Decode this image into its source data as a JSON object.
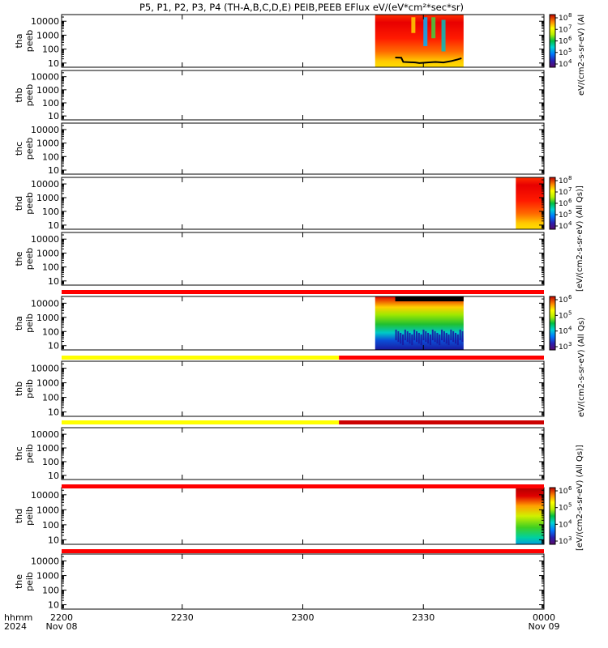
{
  "title": "P5, P1, P2, P3, P4 (TH-A,B,C,D,E) PEIB,PEEB EFlux eV/(eV*cm²*sec*sr)",
  "colorbar_units": {
    "eflux_short": "eV/(cm2-s-sr-eV) (Al",
    "eflux_long": "[eV/(cm2-s-sr-eV) (All Qs)]",
    "eflux_mid": "eV/(cm2-s-sr-eV) (All Qs)"
  },
  "time_axis": {
    "row1_label": "hhmm",
    "row2_label": "2024",
    "ticks": [
      {
        "t": 0,
        "label": "2200",
        "sub": "Nov 08"
      },
      {
        "t": 30,
        "label": "2230",
        "sub": ""
      },
      {
        "t": 60,
        "label": "2300",
        "sub": ""
      },
      {
        "t": 90,
        "label": "2330",
        "sub": ""
      },
      {
        "t": 120,
        "label": "0000",
        "sub": "Nov 09"
      }
    ]
  },
  "chart_data": {
    "type": "heatmap",
    "x_units": "minutes after 2200 UT, 2024-11-08",
    "xlim": [
      0,
      120
    ],
    "ylim_eV": [
      5,
      30000
    ],
    "y_scale": "log",
    "y_ticks": [
      10,
      100,
      1000,
      10000
    ],
    "y_tick_labels": [
      "10",
      "100",
      "1000",
      "10000"
    ],
    "panels": [
      {
        "probe": "tha",
        "species": "peeb",
        "label1": "tha",
        "label2": "peeb",
        "data": [
          {
            "t0": 78,
            "t1": 100
          }
        ],
        "colorbar": {
          "ticks": [
            "10",
            "10",
            "10",
            "10",
            "10"
          ],
          "exps": [
            "8",
            "7",
            "6",
            "5",
            "4"
          ]
        },
        "line_eV": [
          [
            83,
            25
          ],
          [
            84.5,
            24
          ],
          [
            85,
            12
          ],
          [
            88,
            11
          ],
          [
            89,
            10
          ],
          [
            91,
            11
          ],
          [
            93,
            12
          ],
          [
            95,
            11
          ],
          [
            97,
            14
          ],
          [
            98.5,
            18
          ],
          [
            99.5,
            22
          ]
        ]
      },
      {
        "probe": "thb",
        "species": "peeb",
        "label1": "thb",
        "label2": "peeb",
        "data": []
      },
      {
        "probe": "thc",
        "species": "peeb",
        "label1": "thc",
        "label2": "peeb",
        "data": []
      },
      {
        "probe": "thd",
        "species": "peeb",
        "label1": "thd",
        "label2": "peeb",
        "data": [
          {
            "t0": 113,
            "t1": 120
          }
        ],
        "colorbar": {
          "ticks": [
            "10",
            "10",
            "10",
            "10",
            "10"
          ],
          "exps": [
            "8",
            "7",
            "6",
            "5",
            "4"
          ]
        }
      },
      {
        "probe": "the",
        "species": "peeb",
        "label1": "the",
        "label2": "peeb",
        "data": []
      },
      {
        "probe": "tha",
        "species": "peib",
        "label1": "tha",
        "label2": "peib",
        "data": [
          {
            "t0": 78,
            "t1": 100
          }
        ],
        "colorbar": {
          "ticks": [
            "10",
            "10",
            "10",
            "10"
          ],
          "exps": [
            "6",
            "5",
            "4",
            "3"
          ]
        }
      },
      {
        "probe": "thb",
        "species": "peib",
        "label1": "thb",
        "label2": "peib",
        "data": []
      },
      {
        "probe": "thc",
        "species": "peib",
        "label1": "thc",
        "label2": "peib",
        "data": []
      },
      {
        "probe": "thd",
        "species": "peib",
        "label1": "thd",
        "label2": "peib",
        "data": [
          {
            "t0": 113,
            "t1": 120
          }
        ],
        "colorbar": {
          "ticks": [
            "10",
            "10",
            "10",
            "10"
          ],
          "exps": [
            "6",
            "5",
            "4",
            "3"
          ]
        }
      },
      {
        "probe": "the",
        "species": "peib",
        "label1": "the",
        "label2": "peib",
        "data": []
      }
    ],
    "mode_bars": [
      {
        "after_panel": 4,
        "segments": [
          {
            "t0": 0,
            "t1": 120,
            "color": "#ff0000"
          }
        ]
      },
      {
        "after_panel": 5,
        "segments": [
          {
            "t0": 0,
            "t1": 69,
            "color": "#ffff00"
          },
          {
            "t0": 69,
            "t1": 120,
            "color": "#ff0000"
          }
        ]
      },
      {
        "after_panel": 6,
        "segments": [
          {
            "t0": 0,
            "t1": 69,
            "color": "#ffff00"
          },
          {
            "t0": 69,
            "t1": 120,
            "color": "#cc0000"
          }
        ]
      },
      {
        "after_panel": 7,
        "segments": [
          {
            "t0": 0,
            "t1": 120,
            "color": "#ff0000"
          }
        ]
      },
      {
        "after_panel": 8,
        "segments": [
          {
            "t0": 0,
            "t1": 120,
            "color": "#ff0000"
          }
        ]
      }
    ],
    "colors": {
      "red": "#ff0000",
      "yellow": "#ffff00",
      "dark_red": "#cc0000"
    }
  }
}
